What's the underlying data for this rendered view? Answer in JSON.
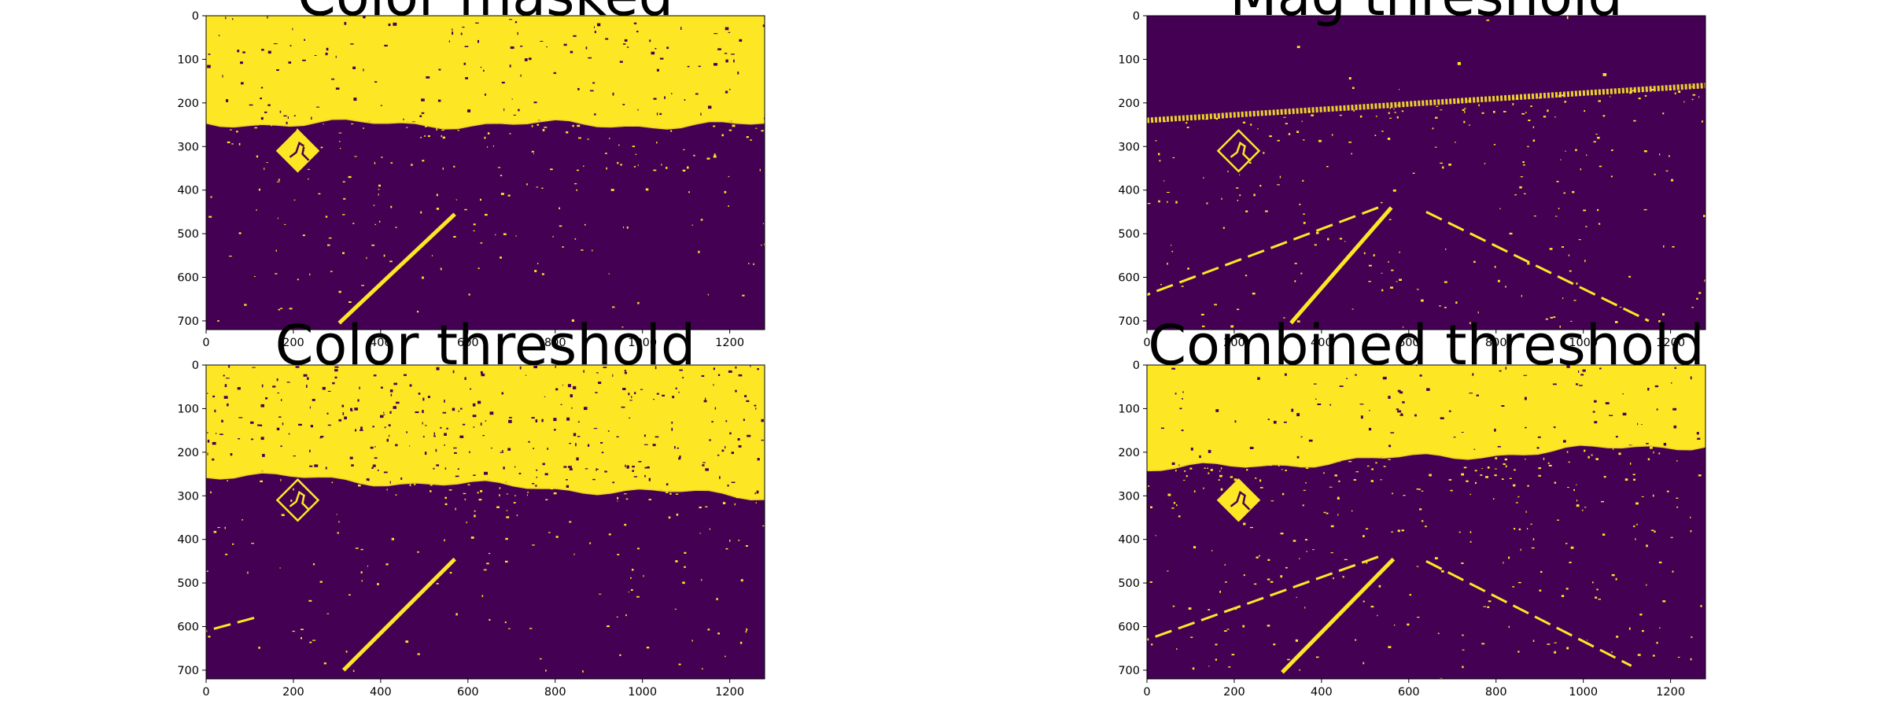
{
  "colors": {
    "background": "#440154",
    "foreground": "#fde725"
  },
  "chart_data": [
    {
      "type": "heatmap",
      "title": "Color masked",
      "xlim": [
        0,
        1280
      ],
      "ylim": [
        720,
        0
      ],
      "xticks": [
        "0",
        "200",
        "400",
        "600",
        "800",
        "1000",
        "1200"
      ],
      "yticks": [
        "0",
        "100",
        "200",
        "300",
        "400",
        "500",
        "600",
        "700"
      ],
      "horizon_left": 245,
      "horizon_right": 250,
      "lanes": [
        {
          "x1": 570,
          "y1": 455,
          "x2": 305,
          "y2": 705
        }
      ]
    },
    {
      "type": "heatmap",
      "title": "Mag threshold",
      "xlim": [
        0,
        1280
      ],
      "ylim": [
        720,
        0
      ],
      "xticks": [
        "0",
        "200",
        "400",
        "600",
        "800",
        "1000",
        "1200"
      ],
      "yticks": [
        "0",
        "100",
        "200",
        "300",
        "400",
        "500",
        "600",
        "700"
      ],
      "horizon_left": 240,
      "horizon_right": 160,
      "lanes": [
        {
          "x1": 560,
          "y1": 440,
          "x2": 330,
          "y2": 705
        },
        {
          "x1": 530,
          "y1": 440,
          "x2": 0,
          "y2": 640
        },
        {
          "x1": 640,
          "y1": 450,
          "x2": 1150,
          "y2": 700
        }
      ]
    },
    {
      "type": "heatmap",
      "title": "Color threshold",
      "xlim": [
        0,
        1280
      ],
      "ylim": [
        720,
        0
      ],
      "xticks": [
        "0",
        "200",
        "400",
        "600",
        "800",
        "1000",
        "1200"
      ],
      "yticks": [
        "0",
        "100",
        "200",
        "300",
        "400",
        "500",
        "600",
        "700"
      ],
      "horizon_left": 250,
      "horizon_right": 300,
      "lanes": [
        {
          "x1": 570,
          "y1": 445,
          "x2": 315,
          "y2": 700
        },
        {
          "x1": 110,
          "y1": 580,
          "x2": 0,
          "y2": 610
        }
      ]
    },
    {
      "type": "heatmap",
      "title": "Combined threshold",
      "xlim": [
        0,
        1280
      ],
      "ylim": [
        720,
        0
      ],
      "xticks": [
        "0",
        "200",
        "400",
        "600",
        "800",
        "1000",
        "1200"
      ],
      "yticks": [
        "0",
        "100",
        "200",
        "300",
        "400",
        "500",
        "600",
        "700"
      ],
      "horizon_left": 240,
      "horizon_right": 180,
      "lanes": [
        {
          "x1": 565,
          "y1": 445,
          "x2": 310,
          "y2": 705
        },
        {
          "x1": 530,
          "y1": 440,
          "x2": 0,
          "y2": 630
        },
        {
          "x1": 640,
          "y1": 450,
          "x2": 1110,
          "y2": 690
        }
      ]
    }
  ]
}
